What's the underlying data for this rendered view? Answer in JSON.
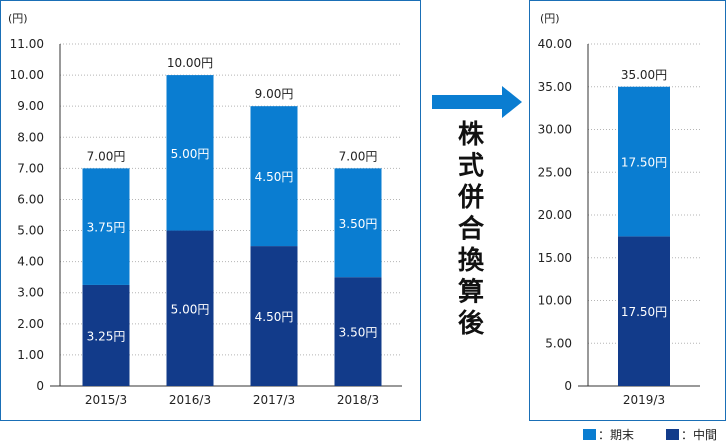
{
  "colors": {
    "period_end": "#0a7dd1",
    "interim": "#123b8a",
    "arrow": "#0a7dd1",
    "frame": "#1a6fb6"
  },
  "middle_text": "株式併合換算後",
  "legend": [
    {
      "label": "：期末",
      "color": "#0a7dd1"
    },
    {
      "label": "：中間",
      "color": "#123b8a"
    }
  ],
  "chart_data": [
    {
      "type": "bar",
      "stacked": true,
      "unit_label": "(円)",
      "categories": [
        "2015/3",
        "2016/3",
        "2017/3",
        "2018/3"
      ],
      "series": [
        {
          "name": "中間",
          "values": [
            3.25,
            5.0,
            4.5,
            3.5
          ],
          "value_labels": [
            "3.25円",
            "5.00円",
            "4.50円",
            "3.50円"
          ]
        },
        {
          "name": "期末",
          "values": [
            3.75,
            5.0,
            4.5,
            3.5
          ],
          "value_labels": [
            "3.75円",
            "5.00円",
            "4.50円",
            "3.50円"
          ]
        }
      ],
      "totals": [
        7.0,
        10.0,
        9.0,
        7.0
      ],
      "total_labels": [
        "7.00円",
        "10.00円",
        "9.00円",
        "7.00円"
      ],
      "ylim": [
        0,
        11
      ],
      "yticks": [
        0,
        1,
        2,
        3,
        4,
        5,
        6,
        7,
        8,
        9,
        10,
        11
      ],
      "ytick_labels": [
        "0",
        "1.00",
        "2.00",
        "3.00",
        "4.00",
        "5.00",
        "6.00",
        "7.00",
        "8.00",
        "9.00",
        "10.00",
        "11.00"
      ],
      "grid": true
    },
    {
      "type": "bar",
      "stacked": true,
      "unit_label": "(円)",
      "categories": [
        "2019/3"
      ],
      "series": [
        {
          "name": "中間",
          "values": [
            17.5
          ],
          "value_labels": [
            "17.50円"
          ]
        },
        {
          "name": "期末",
          "values": [
            17.5
          ],
          "value_labels": [
            "17.50円"
          ]
        }
      ],
      "totals": [
        35.0
      ],
      "total_labels": [
        "35.00円"
      ],
      "ylim": [
        0,
        40
      ],
      "yticks": [
        0,
        5,
        10,
        15,
        20,
        25,
        30,
        35,
        40
      ],
      "ytick_labels": [
        "0",
        "5.00",
        "10.00",
        "15.00",
        "20.00",
        "25.00",
        "30.00",
        "35.00",
        "40.00"
      ],
      "grid": true
    }
  ]
}
